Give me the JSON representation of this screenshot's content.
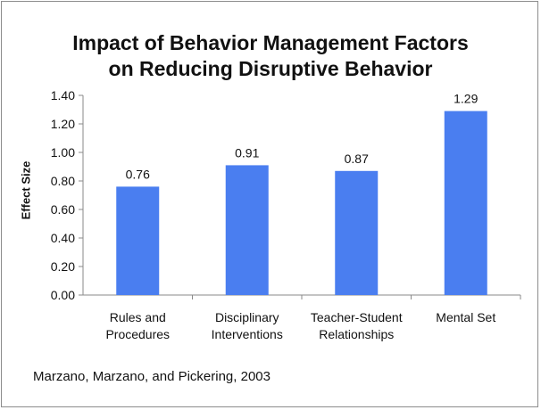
{
  "chart_data": {
    "type": "bar",
    "title_lines": [
      "Impact of Behavior Management Factors",
      "on Reducing Disruptive Behavior"
    ],
    "ylabel": "Effect Size",
    "xlabel": "",
    "categories": [
      [
        "Rules and",
        "Procedures"
      ],
      [
        "Disciplinary",
        "Interventions"
      ],
      [
        "Teacher-Student",
        "Relationships"
      ],
      [
        "Mental Set"
      ]
    ],
    "values": [
      0.76,
      0.91,
      0.87,
      1.29
    ],
    "value_labels": [
      "0.76",
      "0.91",
      "0.87",
      "1.29"
    ],
    "ylim": [
      0,
      1.4
    ],
    "y_ticks": [
      0.0,
      0.2,
      0.4,
      0.6,
      0.8,
      1.0,
      1.2,
      1.4
    ],
    "y_tick_labels": [
      "0.00",
      "0.20",
      "0.40",
      "0.60",
      "0.80",
      "1.00",
      "1.20",
      "1.40"
    ],
    "bar_color": "#4a7ef0",
    "grid": false,
    "legend": "none"
  },
  "source_note": "Marzano, Marzano, and Pickering, 2003"
}
